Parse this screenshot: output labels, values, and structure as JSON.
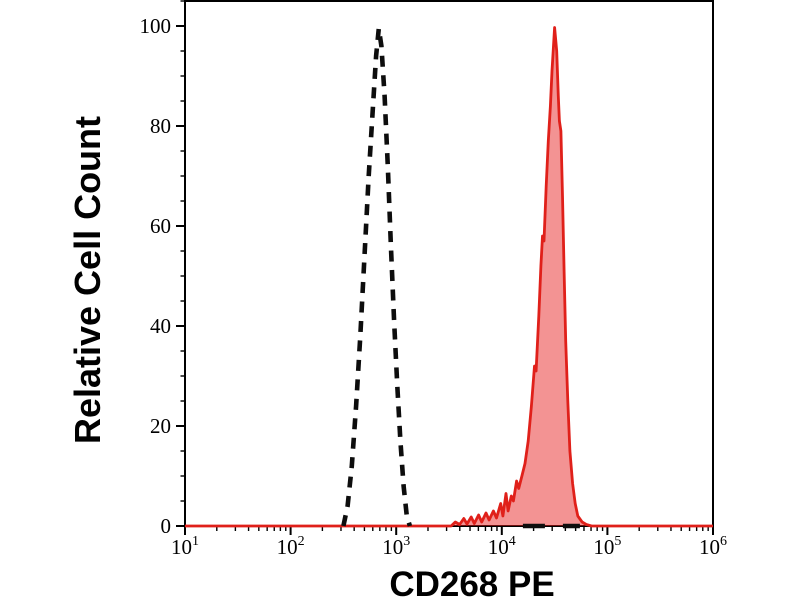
{
  "figure": {
    "background": "#ffffff",
    "axis_color": "#000000"
  },
  "chart_data": {
    "type": "area",
    "subtype": "flow-cytometry-histogram-overlay",
    "title": "",
    "xlabel": "CD268 PE",
    "ylabel": "Relative Cell Count",
    "x_scale": "log10",
    "x_axis": {
      "min_exp": 1,
      "max_exp": 6,
      "major_tick_exps": [
        1,
        2,
        3,
        4,
        5,
        6
      ],
      "tick_label_base": "10",
      "minor_tick_mantissas": [
        2,
        3,
        4,
        5,
        6,
        7,
        8,
        9
      ]
    },
    "y_axis": {
      "min": 0,
      "max": 105,
      "major_ticks": [
        0,
        20,
        40,
        60,
        80,
        100
      ],
      "minor_step": 5
    },
    "grid": false,
    "legend": false,
    "series": [
      {
        "name": "isotype-control",
        "description": "unstained / isotype control histogram",
        "line_style": "dashed",
        "color": "#0d0d0d",
        "fill_color": "none",
        "stroke_width": 4.6,
        "dash_pattern": [
          11,
          8.5
        ],
        "peak_x_approx": 680,
        "peak_y": 99.5,
        "points_logx_y": [
          [
            2.5,
            0
          ],
          [
            2.54,
            4
          ],
          [
            2.58,
            12
          ],
          [
            2.62,
            24
          ],
          [
            2.66,
            38
          ],
          [
            2.7,
            54
          ],
          [
            2.74,
            70
          ],
          [
            2.78,
            84
          ],
          [
            2.81,
            94
          ],
          [
            2.835,
            99.5
          ],
          [
            2.86,
            96
          ],
          [
            2.89,
            86
          ],
          [
            2.92,
            72
          ],
          [
            2.95,
            56
          ],
          [
            2.98,
            41
          ],
          [
            3.01,
            28
          ],
          [
            3.04,
            17
          ],
          [
            3.07,
            8
          ],
          [
            3.1,
            2
          ],
          [
            3.13,
            0
          ]
        ]
      },
      {
        "name": "isotype-control-baseline",
        "description": "dashed baseline continuation at zero",
        "line_style": "dashed",
        "color": "#0d0d0d",
        "fill_color": "none",
        "stroke_width": 4.6,
        "dash_pattern": [
          22,
          18
        ],
        "points_logx_y": [
          [
            4.2,
            0
          ],
          [
            4.74,
            0
          ]
        ]
      },
      {
        "name": "cd268-pe-stained",
        "description": "CD268 PE stained cells histogram",
        "line_style": "solid",
        "color": "#e0201a",
        "fill_color": "rgba(230,30,30,0.48)",
        "stroke_width": 2.8,
        "peak_x_approx": 32000,
        "peak_y": 99.7,
        "points_logx_y": [
          [
            1.0,
            0
          ],
          [
            3.52,
            0
          ],
          [
            3.56,
            0.8
          ],
          [
            3.6,
            0.3
          ],
          [
            3.64,
            1.5
          ],
          [
            3.67,
            0.4
          ],
          [
            3.71,
            1.8
          ],
          [
            3.74,
            0.5
          ],
          [
            3.78,
            2.2
          ],
          [
            3.81,
            0.8
          ],
          [
            3.85,
            2.6
          ],
          [
            3.88,
            1.2
          ],
          [
            3.92,
            3
          ],
          [
            3.95,
            1.6
          ],
          [
            3.99,
            4.5
          ],
          [
            4.01,
            2
          ],
          [
            4.04,
            6.5
          ],
          [
            4.06,
            3
          ],
          [
            4.09,
            6
          ],
          [
            4.11,
            5
          ],
          [
            4.14,
            9
          ],
          [
            4.16,
            7.5
          ],
          [
            4.19,
            10
          ],
          [
            4.22,
            12.5
          ],
          [
            4.25,
            17
          ],
          [
            4.28,
            24
          ],
          [
            4.31,
            32
          ],
          [
            4.325,
            31
          ],
          [
            4.35,
            42
          ],
          [
            4.37,
            52
          ],
          [
            4.385,
            58
          ],
          [
            4.4,
            57
          ],
          [
            4.42,
            68
          ],
          [
            4.44,
            77
          ],
          [
            4.46,
            84
          ],
          [
            4.475,
            91
          ],
          [
            4.49,
            96
          ],
          [
            4.5,
            99.7
          ],
          [
            4.52,
            95
          ],
          [
            4.535,
            86
          ],
          [
            4.545,
            81
          ],
          [
            4.56,
            79
          ],
          [
            4.575,
            66
          ],
          [
            4.59,
            51
          ],
          [
            4.605,
            37
          ],
          [
            4.625,
            25
          ],
          [
            4.645,
            15
          ],
          [
            4.67,
            8.5
          ],
          [
            4.695,
            4.5
          ],
          [
            4.72,
            2
          ],
          [
            4.76,
            0.8
          ],
          [
            4.8,
            0.3
          ],
          [
            4.85,
            0
          ],
          [
            6.0,
            0
          ]
        ]
      }
    ]
  }
}
